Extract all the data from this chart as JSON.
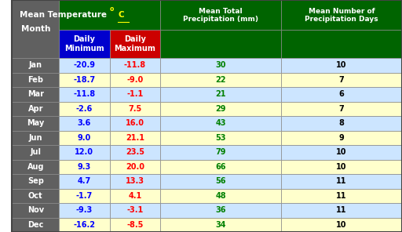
{
  "months": [
    "Jan",
    "Feb",
    "Mar",
    "Apr",
    "May",
    "Jun",
    "Jul",
    "Aug",
    "Sep",
    "Oct",
    "Nov",
    "Dec"
  ],
  "daily_min": [
    -20.9,
    -18.7,
    -11.8,
    -2.6,
    3.6,
    9.0,
    12.0,
    9.3,
    4.7,
    -1.7,
    -9.3,
    -16.2
  ],
  "daily_max": [
    -11.8,
    -9.0,
    -1.1,
    7.5,
    16.0,
    21.1,
    23.5,
    20.0,
    13.3,
    4.1,
    -3.1,
    -8.5
  ],
  "precipitation": [
    30,
    22,
    21,
    29,
    43,
    53,
    79,
    66,
    56,
    48,
    36,
    34
  ],
  "precip_days": [
    10,
    7,
    6,
    7,
    8,
    9,
    10,
    10,
    11,
    11,
    11,
    10
  ],
  "header_bg": "#006400",
  "subheader_min_bg": "#0000CD",
  "subheader_max_bg": "#CC0000",
  "month_col_bg": "#606060",
  "row_bg_light": "#FFFFCC",
  "row_bg_dark": "#CCE5FF",
  "header_text_color": "#FFFFFF",
  "month_text_color": "#FFFFFF",
  "min_text_color": "#0000FF",
  "max_text_color": "#FF0000",
  "precip_text_color": "#008000",
  "precip_days_text_color": "#000000",
  "col1_header": "Month",
  "col3_header": "Daily\nMinimum",
  "col4_header": "Daily\nMaximum",
  "col5_header": "Mean Total\nPrecipitation (mm)",
  "col6_header": "Mean Number of\nPrecipitation Days",
  "superscript_color": "#FFFF00"
}
